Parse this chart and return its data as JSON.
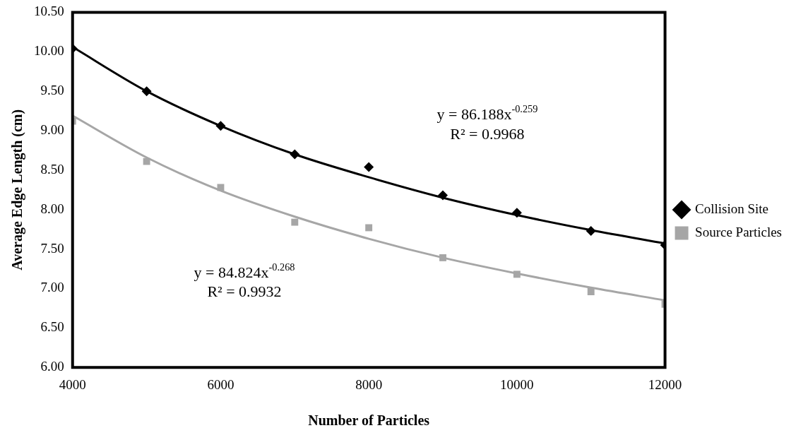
{
  "chart_data": {
    "type": "scatter",
    "xlabel": "Number of Particles",
    "ylabel": "Average Edge Length (cm)",
    "xlim": [
      4000,
      12000
    ],
    "xticks": [
      4000,
      6000,
      8000,
      10000,
      12000
    ],
    "ylim": [
      6,
      10.5
    ],
    "yticks": [
      {
        "value": 6,
        "label": "6.00"
      },
      {
        "value": 6.5,
        "label": "6.50"
      },
      {
        "value": 7,
        "label": "7.00"
      },
      {
        "value": 7.5,
        "label": "7.50"
      },
      {
        "value": 8,
        "label": "8.00"
      },
      {
        "value": 8.5,
        "label": "8.50"
      },
      {
        "value": 9,
        "label": "9.00"
      },
      {
        "value": 9.5,
        "label": "9.50"
      },
      {
        "value": 10,
        "label": "10.00"
      },
      {
        "value": 10.5,
        "label": "10.50"
      }
    ],
    "grid": false,
    "legend": "right",
    "x": [
      4000,
      5000,
      6000,
      7000,
      8000,
      9000,
      10000,
      11000,
      12000
    ],
    "series": [
      {
        "name": "Collision Site",
        "color": "#000000",
        "marker": "diamond",
        "values": [
          10.04,
          9.5,
          9.06,
          8.7,
          8.54,
          8.18,
          7.96,
          7.73,
          7.55
        ]
      },
      {
        "name": "Source Particles",
        "color": "#a6a6a6",
        "marker": "square",
        "values": [
          9.12,
          8.61,
          8.28,
          7.84,
          7.77,
          7.39,
          7.18,
          6.96,
          6.8
        ]
      },
      {
        "type": "line",
        "color": "#000000",
        "marker": "none",
        "x": [
          4000,
          5000,
          6000,
          7000,
          8000,
          9000,
          10000,
          11000,
          12000
        ],
        "values": [
          10.06,
          9.5,
          9.06,
          8.7,
          8.41,
          8.15,
          7.93,
          7.74,
          7.57
        ]
      },
      {
        "type": "line",
        "color": "#a6a6a6",
        "marker": "none",
        "x": [
          4000,
          5000,
          6000,
          7000,
          8000,
          9000,
          10000,
          11000,
          12000
        ],
        "values": [
          9.19,
          8.66,
          8.24,
          7.91,
          7.63,
          7.39,
          7.19,
          7.01,
          6.85
        ]
      }
    ],
    "annotations": [
      "y = 86.188x$^{-0.259}$",
      "R² = 0.9968",
      "y = 84.824x$^{-0.268}$",
      "R² = 0.9932"
    ]
  }
}
